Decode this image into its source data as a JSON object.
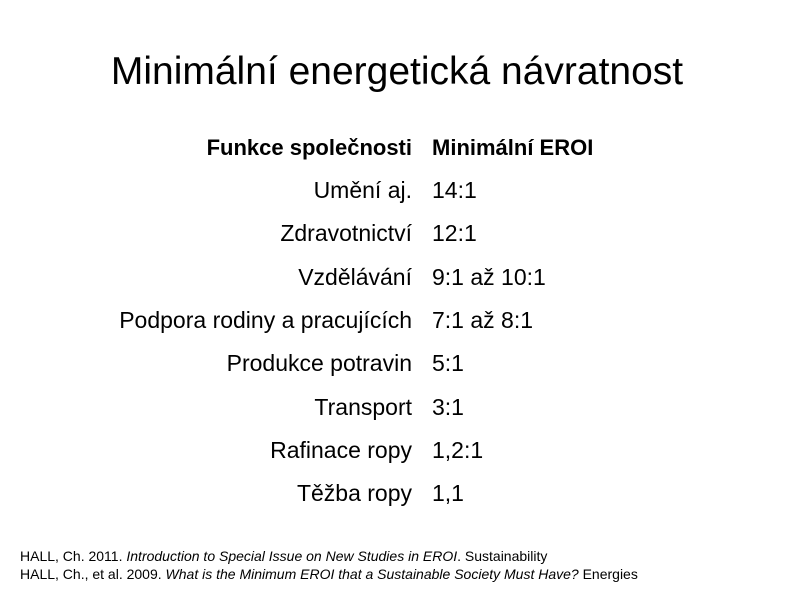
{
  "title": "Minimální energetická návratnost",
  "table": {
    "header": [
      "Funkce společnosti",
      "Minimální EROI"
    ],
    "rows": [
      [
        "Umění aj.",
        "14:1"
      ],
      [
        "Zdravotnictví",
        "12:1"
      ],
      [
        "Vzdělávání",
        "9:1 až 10:1"
      ],
      [
        "Podpora rodiny a pracujících",
        "7:1 až 8:1"
      ],
      [
        "Produkce potravin",
        "5:1"
      ],
      [
        "Transport",
        "3:1"
      ],
      [
        "Rafinace ropy",
        "1,2:1"
      ],
      [
        "Těžba ropy",
        "1,1"
      ]
    ]
  },
  "references": [
    [
      {
        "text": "HALL, Ch. 2011. ",
        "italic": false
      },
      {
        "text": "Introduction to Special Issue on New Studies in EROI",
        "italic": true
      },
      {
        "text": ". Sustainability",
        "italic": false
      }
    ],
    [
      {
        "text": "HALL, Ch., et al. 2009. ",
        "italic": false
      },
      {
        "text": "What is the Minimum EROI that a Sustainable Society Must Have?",
        "italic": true
      },
      {
        "text": " Energies",
        "italic": false
      }
    ]
  ]
}
